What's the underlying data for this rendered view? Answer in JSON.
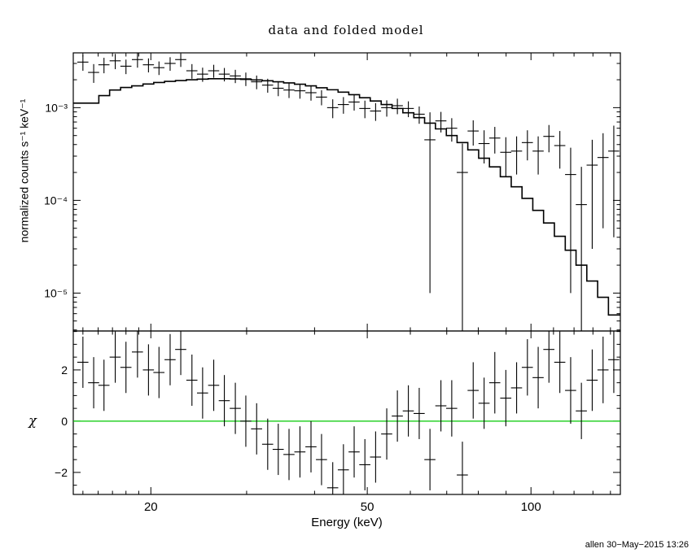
{
  "title": "data and folded model",
  "xlabel": "Energy (keV)",
  "ylabel_top": "normalized counts s⁻¹ keV⁻¹",
  "ylabel_bottom": "χ",
  "footer": "allen 30−May−2015 13:26",
  "colors": {
    "frame": "#000000",
    "data": "#000000",
    "model": "#000000",
    "zero_line": "#00c800",
    "background": "#ffffff"
  },
  "chart_data": [
    {
      "type": "scatter",
      "panel": "top",
      "title": "data and folded model",
      "xlabel": "Energy (keV)",
      "ylabel": "normalized counts s⁻¹ keV⁻¹",
      "xscale": "log",
      "yscale": "log",
      "xlim": [
        14.4,
        146
      ],
      "ylim": [
        3.9e-06,
        0.0039
      ],
      "grid": false,
      "xticks": [
        {
          "value": 20,
          "label": "20"
        },
        {
          "value": 50,
          "label": "50"
        },
        {
          "value": 100,
          "label": "100"
        }
      ],
      "yticks": [
        {
          "value": 0.001,
          "label": "10⁻³"
        },
        {
          "value": 0.0001,
          "label": "10⁻⁴"
        },
        {
          "value": 1e-05,
          "label": "10⁻⁵"
        }
      ],
      "xerr_frac": 0.0235,
      "series": [
        {
          "name": "data",
          "style": "errorbar-cross",
          "x": [
            15.0,
            15.7,
            16.4,
            17.2,
            18.0,
            18.9,
            19.8,
            20.7,
            21.7,
            22.7,
            23.8,
            24.9,
            26.1,
            27.3,
            28.6,
            29.9,
            31.3,
            32.8,
            34.3,
            35.9,
            37.6,
            39.4,
            41.2,
            43.2,
            45.2,
            47.3,
            49.5,
            51.8,
            54.3,
            56.8,
            59.5,
            62.3,
            65.2,
            68.3,
            71.5,
            74.8,
            78.3,
            82.0,
            85.8,
            89.9,
            94.1,
            98.5,
            103.1,
            107.9,
            113.0,
            118.3,
            123.8,
            129.6,
            135.7,
            142.0
          ],
          "y": [
            0.0031,
            0.0024,
            0.0029,
            0.0032,
            0.0028,
            0.0033,
            0.0029,
            0.0027,
            0.003,
            0.0033,
            0.0025,
            0.0023,
            0.0025,
            0.0023,
            0.0022,
            0.00205,
            0.0019,
            0.00175,
            0.00162,
            0.00155,
            0.00152,
            0.00145,
            0.0013,
            0.001,
            0.00108,
            0.00115,
            0.00098,
            0.00092,
            0.001,
            0.00105,
            0.00098,
            0.00085,
            0.00045,
            0.00072,
            0.0006,
            0.0002,
            0.00056,
            0.00041,
            0.00047,
            0.00033,
            0.00034,
            0.00042,
            0.00034,
            0.00049,
            0.00039,
            0.00019,
            9e-05,
            0.00024,
            0.00029,
            0.00034
          ],
          "yerr": [
            0.0006,
            0.00055,
            0.00055,
            0.0006,
            0.0005,
            0.0006,
            0.0005,
            0.00045,
            0.0005,
            0.00055,
            0.00045,
            0.0004,
            0.0004,
            0.00038,
            0.00036,
            0.00034,
            0.00032,
            0.0003,
            0.00029,
            0.00028,
            0.00027,
            0.00026,
            0.00024,
            0.00023,
            0.00022,
            0.00022,
            0.00021,
            0.0002,
            0.0002,
            0.0002,
            0.00019,
            0.00018,
            0.00044,
            0.00018,
            0.00017,
            0.00021,
            0.00017,
            0.00016,
            0.00015,
            0.00015,
            0.00015,
            0.00015,
            0.00015,
            0.00016,
            0.00017,
            0.00018,
            0.00014,
            0.00021,
            0.00024,
            0.0003
          ]
        },
        {
          "name": "folded model",
          "style": "step-histogram",
          "x": [
            15.0,
            15.7,
            16.4,
            17.2,
            18.0,
            18.9,
            19.8,
            20.7,
            21.7,
            22.7,
            23.8,
            24.9,
            26.1,
            27.3,
            28.6,
            29.9,
            31.3,
            32.8,
            34.3,
            35.9,
            37.6,
            39.4,
            41.2,
            43.2,
            45.2,
            47.3,
            49.5,
            51.8,
            54.3,
            56.8,
            59.5,
            62.3,
            65.2,
            68.3,
            71.5,
            74.8,
            78.3,
            82.0,
            85.8,
            89.9,
            94.1,
            98.5,
            103.1,
            107.9,
            113.0,
            118.3,
            123.8,
            129.6,
            135.7,
            142.0
          ],
          "y": [
            0.00112,
            0.00112,
            0.00135,
            0.00155,
            0.00165,
            0.00172,
            0.0018,
            0.00187,
            0.00192,
            0.00196,
            0.002,
            0.00203,
            0.00205,
            0.00205,
            0.00204,
            0.00202,
            0.00199,
            0.00195,
            0.0019,
            0.00185,
            0.00179,
            0.00172,
            0.00164,
            0.00156,
            0.00147,
            0.00138,
            0.00128,
            0.00118,
            0.00108,
            0.00098,
            0.00088,
            0.00078,
            0.00068,
            0.00059,
            0.0005,
            0.00042,
            0.00035,
            0.000285,
            0.00023,
            0.00018,
            0.00014,
            0.000105,
            7.8e-05,
            5.7e-05,
            4.1e-05,
            2.9e-05,
            2e-05,
            1.35e-05,
            9e-06,
            5.8e-06
          ]
        }
      ]
    },
    {
      "type": "scatter",
      "panel": "bottom",
      "ylabel": "χ",
      "xscale": "log",
      "xlim": [
        14.4,
        146
      ],
      "ylim": [
        -2.86,
        3.52
      ],
      "grid": false,
      "yticks": [
        {
          "value": 2,
          "label": "2"
        },
        {
          "value": 0,
          "label": "0"
        },
        {
          "value": -2,
          "label": "−2"
        }
      ],
      "zero_line": 0,
      "xerr_frac": 0.0235,
      "series": [
        {
          "name": "residuals",
          "style": "errorbar-cross",
          "x": [
            15.0,
            15.7,
            16.4,
            17.2,
            18.0,
            18.9,
            19.8,
            20.7,
            21.7,
            22.7,
            23.8,
            24.9,
            26.1,
            27.3,
            28.6,
            29.9,
            31.3,
            32.8,
            34.3,
            35.9,
            37.6,
            39.4,
            41.2,
            43.2,
            45.2,
            47.3,
            49.5,
            51.8,
            54.3,
            56.8,
            59.5,
            62.3,
            65.2,
            68.3,
            71.5,
            74.8,
            78.3,
            82.0,
            85.8,
            89.9,
            94.1,
            98.5,
            103.1,
            107.9,
            113.0,
            118.3,
            123.8,
            129.6,
            135.7,
            142.0
          ],
          "y": [
            2.3,
            1.5,
            1.4,
            2.5,
            2.1,
            2.7,
            2.0,
            1.9,
            2.4,
            2.8,
            1.6,
            1.1,
            1.4,
            0.8,
            0.5,
            0.0,
            -0.3,
            -0.9,
            -1.1,
            -1.3,
            -1.2,
            -1.0,
            -1.5,
            -2.6,
            -1.9,
            -1.2,
            -1.7,
            -1.4,
            -0.5,
            0.2,
            0.4,
            0.3,
            -1.5,
            0.6,
            0.5,
            -2.1,
            1.2,
            0.7,
            1.5,
            0.9,
            1.3,
            2.1,
            1.7,
            2.8,
            2.3,
            1.2,
            0.4,
            1.6,
            2.0,
            2.4
          ],
          "yerr": [
            1.0,
            1.0,
            1.0,
            1.0,
            1.0,
            1.0,
            1.0,
            1.0,
            1.0,
            1.0,
            1.0,
            1.0,
            1.0,
            1.0,
            1.0,
            1.0,
            1.0,
            1.0,
            1.0,
            1.0,
            1.0,
            1.0,
            1.0,
            1.0,
            1.0,
            1.0,
            1.0,
            1.0,
            1.0,
            1.0,
            1.0,
            1.0,
            1.2,
            1.0,
            1.1,
            1.3,
            1.1,
            1.0,
            1.2,
            1.1,
            1.0,
            1.1,
            1.2,
            1.3,
            1.2,
            1.3,
            1.1,
            1.2,
            1.3,
            1.3
          ]
        }
      ]
    }
  ]
}
